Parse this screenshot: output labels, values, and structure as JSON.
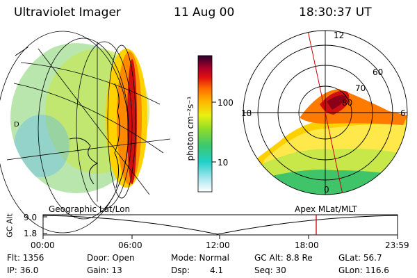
{
  "header": {
    "title": "Ultraviolet Imager",
    "date": "11 Aug 00",
    "time": "18:30:37 UT"
  },
  "colorbar": {
    "unit_label": "photon cm⁻²s⁻¹",
    "ticks": [
      "100",
      "10"
    ]
  },
  "polar": {
    "mlt_labels": [
      "12",
      "18",
      "6",
      "0"
    ],
    "lat_labels": [
      "60",
      "70",
      "80"
    ]
  },
  "timeline": {
    "left_label": "Geographic Lat/Lon",
    "right_label": "Apex MLat/MLT",
    "axis_title": "GC Alt",
    "y_ticks": [
      "9.0",
      "1.8"
    ],
    "x_ticks": [
      "00:00",
      "06:00",
      "12:00",
      "18:00",
      "23:59"
    ],
    "marker_color": "#cc0000"
  },
  "footer": {
    "row1": [
      "Flt: 1356",
      "Door: Open",
      "Mode: Normal",
      "GC Alt: 8.8 Re",
      "GLat: 56.7"
    ],
    "row2": [
      "IP: 36.0",
      "Gain: 13",
      "Dsp:",
      "4.1",
      "Seq: 30",
      "GLon: 116.6"
    ]
  }
}
